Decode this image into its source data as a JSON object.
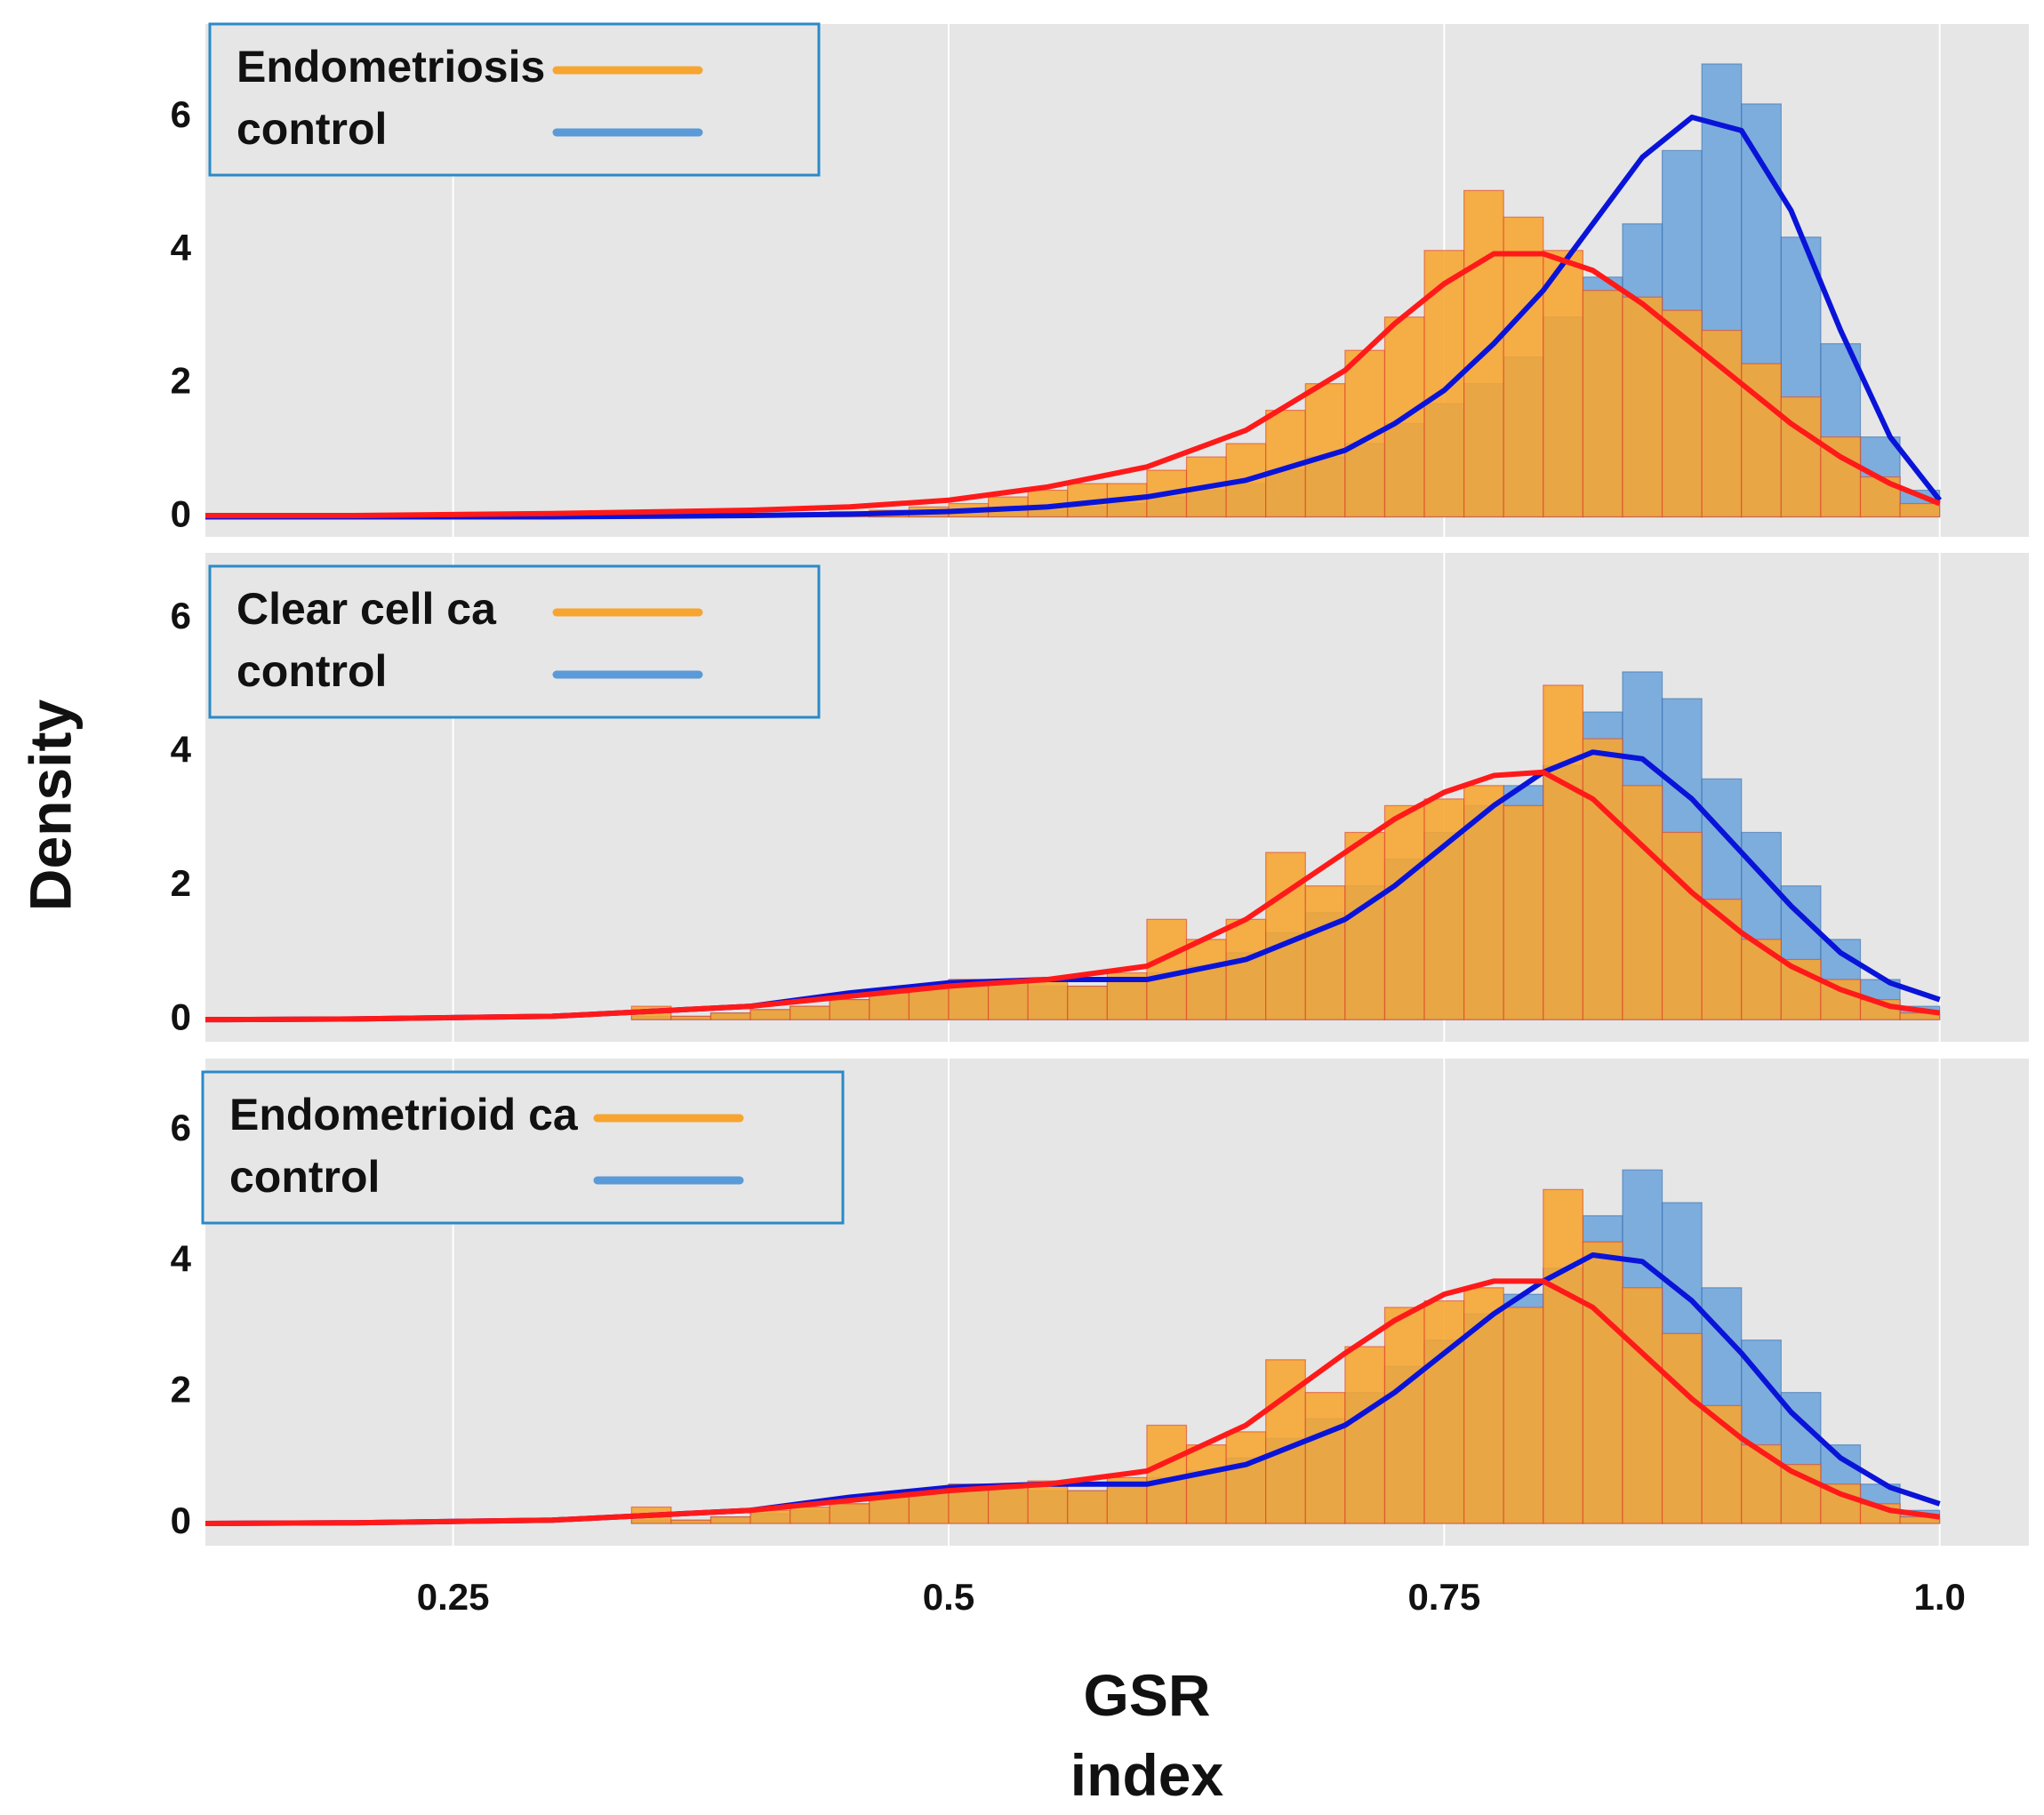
{
  "chart_data": [
    {
      "type": "histogram",
      "bins": [
        0.3,
        0.32,
        0.34,
        0.36,
        0.38,
        0.4,
        0.42,
        0.44,
        0.46,
        0.48,
        0.5,
        0.52,
        0.54,
        0.56,
        0.58,
        0.6,
        0.62,
        0.64,
        0.66,
        0.68,
        0.7,
        0.72,
        0.74,
        0.76,
        0.78,
        0.8,
        0.82,
        0.84,
        0.86,
        0.88,
        0.9,
        0.92,
        0.94,
        0.96,
        0.98,
        1.0
      ],
      "xlim": [
        0.125,
        1.045
      ],
      "ylim": [
        -0.3,
        7.4
      ],
      "yticks": [
        0,
        2,
        4,
        6
      ],
      "series": [
        {
          "name": "Endometriosis",
          "color": "#f7a530",
          "values": [
            0,
            0,
            0.02,
            0.03,
            0.04,
            0.05,
            0.06,
            0.08,
            0.1,
            0.15,
            0.2,
            0.3,
            0.4,
            0.5,
            0.5,
            0.7,
            0.9,
            1.1,
            1.6,
            2.0,
            2.5,
            3.0,
            4.0,
            4.9,
            4.5,
            4.0,
            3.4,
            3.3,
            3.1,
            2.8,
            2.3,
            1.8,
            1.2,
            0.6,
            0.2
          ],
          "curve": {
            "color": "#ff1a1a",
            "x": [
              0.125,
              0.2,
              0.3,
              0.4,
              0.45,
              0.5,
              0.55,
              0.6,
              0.65,
              0.7,
              0.725,
              0.75,
              0.775,
              0.8,
              0.825,
              0.85,
              0.875,
              0.9,
              0.925,
              0.95,
              0.975,
              1.0
            ],
            "values": [
              0.02,
              0.02,
              0.05,
              0.1,
              0.15,
              0.25,
              0.45,
              0.75,
              1.3,
              2.2,
              2.9,
              3.5,
              3.95,
              3.95,
              3.7,
              3.2,
              2.6,
              2.0,
              1.4,
              0.9,
              0.5,
              0.2
            ]
          }
        },
        {
          "name": "control",
          "color": "#5a9ad8",
          "values": [
            0,
            0,
            0,
            0,
            0,
            0,
            0,
            0,
            0.02,
            0.03,
            0.05,
            0.08,
            0.1,
            0.15,
            0.2,
            0.3,
            0.4,
            0.5,
            0.7,
            0.9,
            1.1,
            1.4,
            1.7,
            2.0,
            2.4,
            3.0,
            3.6,
            4.4,
            5.5,
            6.8,
            6.2,
            4.2,
            2.6,
            1.2,
            0.4
          ],
          "curve": {
            "color": "#0a14d8",
            "x": [
              0.125,
              0.2,
              0.3,
              0.4,
              0.45,
              0.5,
              0.55,
              0.6,
              0.65,
              0.7,
              0.725,
              0.75,
              0.775,
              0.8,
              0.825,
              0.85,
              0.875,
              0.9,
              0.925,
              0.95,
              0.975,
              1.0
            ],
            "values": [
              0,
              0,
              0,
              0.02,
              0.04,
              0.08,
              0.15,
              0.3,
              0.55,
              1.0,
              1.4,
              1.9,
              2.6,
              3.4,
              4.4,
              5.4,
              6.0,
              5.8,
              4.6,
              2.8,
              1.2,
              0.25
            ]
          }
        }
      ]
    },
    {
      "type": "histogram",
      "ylabel": "Density",
      "bins": [
        0.3,
        0.32,
        0.34,
        0.36,
        0.38,
        0.4,
        0.42,
        0.44,
        0.46,
        0.48,
        0.5,
        0.52,
        0.54,
        0.56,
        0.58,
        0.6,
        0.62,
        0.64,
        0.66,
        0.68,
        0.7,
        0.72,
        0.74,
        0.76,
        0.78,
        0.8,
        0.82,
        0.84,
        0.86,
        0.88,
        0.9,
        0.92,
        0.94,
        0.96,
        0.98,
        1.0
      ],
      "xlim": [
        0.125,
        1.045
      ],
      "ylim": [
        -0.33,
        6.98
      ],
      "yticks": [
        0,
        2,
        4,
        6
      ],
      "series": [
        {
          "name": "Clear cell ca",
          "color": "#f7a530",
          "values": [
            0,
            0,
            0.2,
            0.05,
            0.1,
            0.15,
            0.2,
            0.3,
            0.4,
            0.5,
            0.6,
            0.6,
            0.6,
            0.5,
            0.7,
            1.5,
            1.2,
            1.5,
            2.5,
            2.0,
            2.8,
            3.2,
            3.3,
            3.5,
            3.2,
            5.0,
            4.2,
            3.5,
            2.8,
            1.8,
            1.2,
            0.9,
            0.6,
            0.3,
            0.1
          ],
          "curve": {
            "color": "#ff1a1a",
            "x": [
              0.125,
              0.2,
              0.3,
              0.4,
              0.45,
              0.5,
              0.55,
              0.6,
              0.65,
              0.7,
              0.725,
              0.75,
              0.775,
              0.8,
              0.825,
              0.85,
              0.875,
              0.9,
              0.925,
              0.95,
              0.975,
              1.0
            ],
            "values": [
              0,
              0.01,
              0.05,
              0.2,
              0.35,
              0.5,
              0.6,
              0.8,
              1.5,
              2.5,
              3.0,
              3.4,
              3.65,
              3.7,
              3.3,
              2.6,
              1.9,
              1.3,
              0.8,
              0.45,
              0.2,
              0.1
            ]
          }
        },
        {
          "name": "control",
          "color": "#5a9ad8",
          "values": [
            0,
            0,
            0.05,
            0.05,
            0.1,
            0.15,
            0.2,
            0.3,
            0.4,
            0.5,
            0.6,
            0.6,
            0.5,
            0.5,
            0.6,
            0.7,
            0.8,
            1.0,
            1.3,
            1.6,
            2.0,
            2.4,
            2.8,
            3.2,
            3.5,
            3.8,
            4.6,
            5.2,
            4.8,
            3.6,
            2.8,
            2.0,
            1.2,
            0.6,
            0.2
          ],
          "curve": {
            "color": "#0a14d8",
            "x": [
              0.125,
              0.2,
              0.3,
              0.4,
              0.45,
              0.5,
              0.55,
              0.6,
              0.65,
              0.7,
              0.725,
              0.75,
              0.775,
              0.8,
              0.825,
              0.85,
              0.875,
              0.9,
              0.925,
              0.95,
              0.975,
              1.0
            ],
            "values": [
              0,
              0.01,
              0.05,
              0.2,
              0.4,
              0.55,
              0.6,
              0.6,
              0.9,
              1.5,
              2.0,
              2.6,
              3.2,
              3.7,
              4.0,
              3.9,
              3.3,
              2.5,
              1.7,
              1.0,
              0.55,
              0.3
            ]
          }
        }
      ]
    },
    {
      "type": "histogram",
      "xlabel": "GSR index",
      "bins": [
        0.3,
        0.32,
        0.34,
        0.36,
        0.38,
        0.4,
        0.42,
        0.44,
        0.46,
        0.48,
        0.5,
        0.52,
        0.54,
        0.56,
        0.58,
        0.6,
        0.62,
        0.64,
        0.66,
        0.68,
        0.7,
        0.72,
        0.74,
        0.76,
        0.78,
        0.8,
        0.82,
        0.84,
        0.86,
        0.88,
        0.9,
        0.92,
        0.94,
        0.96,
        0.98,
        1.0
      ],
      "xlim": [
        0.125,
        1.045
      ],
      "ylim": [
        -0.34,
        7.1
      ],
      "yticks": [
        0,
        2,
        4,
        6
      ],
      "xticks": [
        0.25,
        0.5,
        0.75,
        {
          "value": 1,
          "label": "1.0"
        }
      ],
      "grid": "x",
      "series": [
        {
          "name": "Endometrioid ca",
          "color": "#f7a530",
          "values": [
            0,
            0,
            0.25,
            0.05,
            0.1,
            0.2,
            0.25,
            0.3,
            0.45,
            0.5,
            0.6,
            0.6,
            0.65,
            0.5,
            0.7,
            1.5,
            1.2,
            1.4,
            2.5,
            2.0,
            2.7,
            3.3,
            3.4,
            3.6,
            3.3,
            5.1,
            4.3,
            3.6,
            2.9,
            1.8,
            1.2,
            0.9,
            0.6,
            0.3,
            0.1
          ],
          "curve": {
            "color": "#ff1a1a",
            "x": [
              0.125,
              0.2,
              0.3,
              0.4,
              0.45,
              0.5,
              0.55,
              0.6,
              0.65,
              0.7,
              0.725,
              0.75,
              0.775,
              0.8,
              0.825,
              0.85,
              0.875,
              0.9,
              0.925,
              0.95,
              0.975,
              1.0
            ],
            "values": [
              0,
              0.01,
              0.05,
              0.2,
              0.35,
              0.5,
              0.6,
              0.8,
              1.5,
              2.6,
              3.1,
              3.5,
              3.7,
              3.7,
              3.3,
              2.6,
              1.9,
              1.3,
              0.8,
              0.45,
              0.2,
              0.1
            ]
          }
        },
        {
          "name": "control",
          "color": "#5a9ad8",
          "values": [
            0,
            0,
            0.05,
            0.05,
            0.1,
            0.15,
            0.2,
            0.3,
            0.4,
            0.5,
            0.6,
            0.6,
            0.5,
            0.5,
            0.6,
            0.7,
            0.8,
            1.0,
            1.3,
            1.6,
            2.0,
            2.4,
            2.8,
            3.2,
            3.5,
            3.9,
            4.7,
            5.4,
            4.9,
            3.6,
            2.8,
            2.0,
            1.2,
            0.6,
            0.2
          ],
          "curve": {
            "color": "#0a14d8",
            "x": [
              0.125,
              0.2,
              0.3,
              0.4,
              0.45,
              0.5,
              0.55,
              0.6,
              0.65,
              0.7,
              0.725,
              0.75,
              0.775,
              0.8,
              0.825,
              0.85,
              0.875,
              0.9,
              0.925,
              0.95,
              0.975,
              1.0
            ],
            "values": [
              0,
              0.01,
              0.05,
              0.2,
              0.4,
              0.55,
              0.6,
              0.6,
              0.9,
              1.5,
              2.0,
              2.6,
              3.2,
              3.7,
              4.1,
              4.0,
              3.4,
              2.6,
              1.7,
              1.0,
              0.55,
              0.3
            ]
          }
        }
      ]
    }
  ]
}
